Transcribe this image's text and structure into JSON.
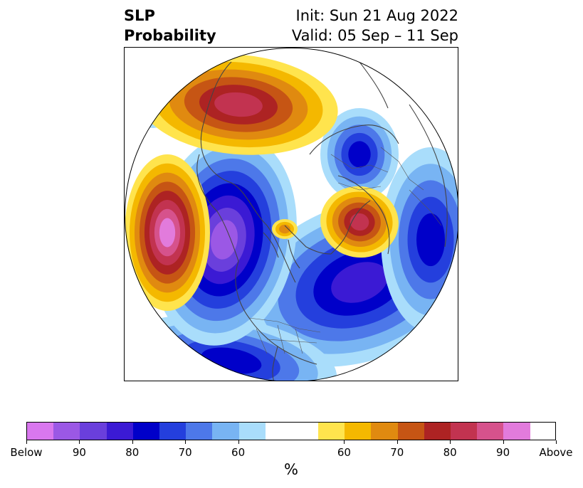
{
  "title": {
    "left_line1": "SLP",
    "left_line2": "Probability",
    "right_line1": "Init: Sun 21 Aug 2022",
    "right_line2": "Valid: 05 Sep – 11 Sep"
  },
  "colorbar": {
    "colors": [
      "#d977ee",
      "#9b58e5",
      "#6a3fdc",
      "#3b1ad4",
      "#0000c9",
      "#243fdd",
      "#4d78e9",
      "#78b4f3",
      "#a9ddfb",
      "#ffffff",
      "#ffffff",
      "#ffe44d",
      "#f4b800",
      "#e08a10",
      "#c65514",
      "#ad2323",
      "#c23350",
      "#d6528c",
      "#e27bdc"
    ],
    "tick_labels": [
      "Below",
      "90",
      "80",
      "70",
      "60",
      "60",
      "70",
      "80",
      "90",
      "Above"
    ],
    "unit_label": "%"
  },
  "map": {
    "below_colors": [
      "#a9ddfb",
      "#78b4f3",
      "#4d78e9",
      "#243fdd",
      "#0000c9",
      "#3b1ad4",
      "#6a3fdc",
      "#9b58e5",
      "#d977ee"
    ],
    "above_colors": [
      "#ffe44d",
      "#f4b800",
      "#e08a10",
      "#c65514",
      "#ad2323",
      "#c23350",
      "#d6528c",
      "#e27bdc"
    ]
  }
}
